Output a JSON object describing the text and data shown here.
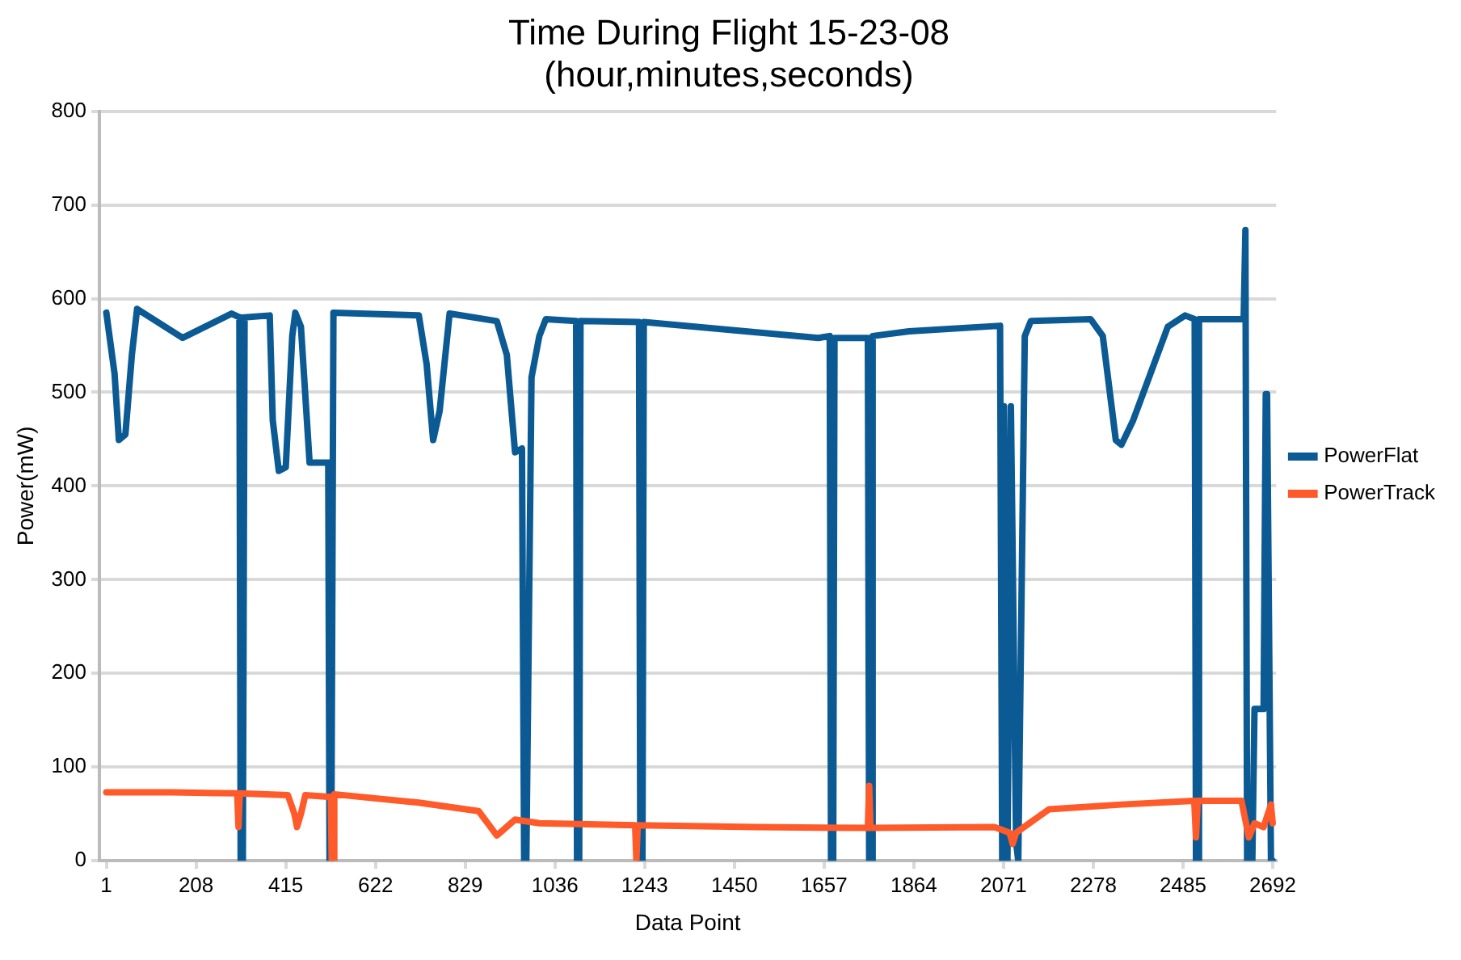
{
  "chart_data": {
    "type": "line",
    "title": "Time During Flight 15-23-08\n(hour,minutes,seconds)",
    "xlabel": "Data Point",
    "ylabel": "Power(mW)",
    "xlim": [
      -15,
      2700
    ],
    "xticks": [
      1,
      208,
      415,
      622,
      829,
      1036,
      1243,
      1450,
      1657,
      1864,
      2071,
      2278,
      2485,
      2692
    ],
    "ylim": [
      0,
      800
    ],
    "yticks": [
      0,
      100,
      200,
      300,
      400,
      500,
      600,
      700,
      800
    ],
    "grid": "y",
    "legend": "right",
    "marker": "none",
    "line_style": "solid",
    "series": [
      {
        "name": "PowerFlat",
        "color": "#0b5a94",
        "x": [
          1,
          20,
          30,
          45,
          60,
          72,
          177,
          290,
          308,
          311,
          316,
          320,
          378,
          385,
          399,
          415,
          430,
          437,
          450,
          470,
          500,
          513,
          516,
          520,
          525,
          722,
          740,
          755,
          770,
          793,
          902,
          925,
          944,
          960,
          965,
          970,
          982,
          1000,
          1015,
          1085,
          1087,
          1092,
          1095,
          1230,
          1233,
          1238,
          1241,
          1644,
          1670,
          1673,
          1678,
          1681,
          1758,
          1761,
          1766,
          1769,
          1853,
          2063,
          2068,
          2072,
          2080,
          2088,
          2100,
          2105,
          2120,
          2134,
          2272,
          2300,
          2330,
          2343,
          2370,
          2450,
          2490,
          2512,
          2515,
          2519,
          2522,
          2625,
          2629,
          2633,
          2645,
          2650,
          2665,
          2671,
          2676,
          2679,
          2688,
          2692
        ],
        "values": [
          585,
          520,
          449,
          455,
          540,
          589,
          558,
          584,
          580,
          0,
          0,
          580,
          582,
          470,
          416,
          420,
          560,
          585,
          570,
          425,
          425,
          425,
          0,
          0,
          585,
          582,
          530,
          449,
          480,
          584,
          576,
          540,
          436,
          440,
          0,
          0,
          516,
          560,
          578,
          576,
          0,
          0,
          576,
          575,
          0,
          0,
          575,
          558,
          560,
          0,
          0,
          558,
          558,
          0,
          0,
          560,
          565,
          571,
          0,
          485,
          0,
          485,
          20,
          0,
          560,
          576,
          578,
          560,
          449,
          444,
          470,
          570,
          582,
          578,
          0,
          0,
          578,
          578,
          673,
          0,
          0,
          162,
          162,
          162,
          498,
          498,
          0,
          0
        ]
      },
      {
        "name": "PowerTrack",
        "color": "#ff5a2a",
        "x": [
          1,
          150,
          303,
          306,
          309,
          420,
          435,
          441,
          450,
          460,
          519,
          521,
          524,
          527,
          722,
          860,
          902,
          944,
          1000,
          1221,
          1224,
          1227,
          1500,
          1758,
          1761,
          1764,
          2050,
          2085,
          2092,
          2100,
          2176,
          2343,
          2511,
          2515,
          2519,
          2620,
          2637,
          2650,
          2671,
          2688,
          2692
        ],
        "values": [
          73,
          73,
          72,
          36,
          72,
          70,
          50,
          36,
          50,
          70,
          68,
          0,
          0,
          71,
          62,
          53,
          27,
          44,
          40,
          38,
          0,
          38,
          36,
          35,
          80,
          35,
          36,
          30,
          18,
          30,
          55,
          60,
          64,
          25,
          64,
          64,
          25,
          40,
          36,
          60,
          40
        ]
      }
    ]
  }
}
